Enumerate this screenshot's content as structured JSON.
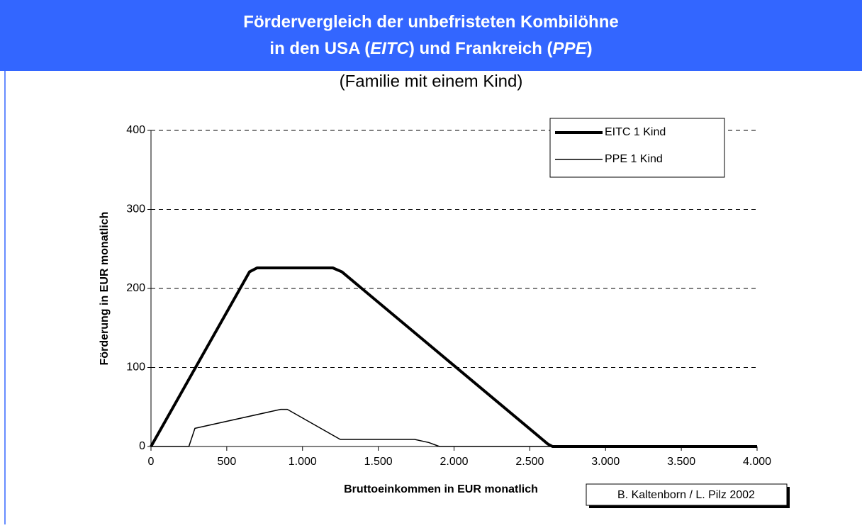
{
  "chart_data": {
    "type": "line",
    "title": "Fördervergleich der unbefristeten Kombilöhne",
    "title_line2": [
      "in den USA (",
      "EITC",
      ") und Frankreich (",
      "PPE",
      ")"
    ],
    "subtitle": "(Familie mit einem Kind)",
    "x_label": "Bruttoeinkommen in EUR monatlich",
    "y_label": "Förderung in EUR monatlich",
    "source": "B. Kaltenborn / L. Pilz 2002",
    "xlim": [
      0,
      4000
    ],
    "ylim": [
      0,
      400
    ],
    "xticks": [
      0,
      500,
      {
        "value": 1000,
        "label": "1.000"
      },
      {
        "value": 1500,
        "label": "1.500"
      },
      {
        "value": 2000,
        "label": "2.000"
      },
      {
        "value": 2500,
        "label": "2.500"
      },
      {
        "value": 3000,
        "label": "3.000"
      },
      {
        "value": 3500,
        "label": "3.500"
      },
      {
        "value": 4000,
        "label": "4.000"
      }
    ],
    "yticks": [
      0,
      100,
      200,
      300,
      400
    ],
    "grid": true,
    "legend": "upper right",
    "series": [
      {
        "name": "EITC 1 Kind",
        "color": "#000000",
        "width": 4,
        "x": [
          0,
          650,
          700,
          1200,
          1260,
          2620,
          2650,
          4000
        ],
        "values": [
          0,
          221,
          226,
          226,
          221,
          3,
          0,
          0
        ]
      },
      {
        "name": "PPE 1 Kind",
        "color": "#000000",
        "width": 1.5,
        "x": [
          0,
          250,
          290,
          856,
          900,
          1249,
          1740,
          1834,
          1904,
          4000
        ],
        "values": [
          0,
          0,
          23,
          47,
          47,
          9,
          9,
          5,
          0,
          0
        ]
      }
    ]
  }
}
